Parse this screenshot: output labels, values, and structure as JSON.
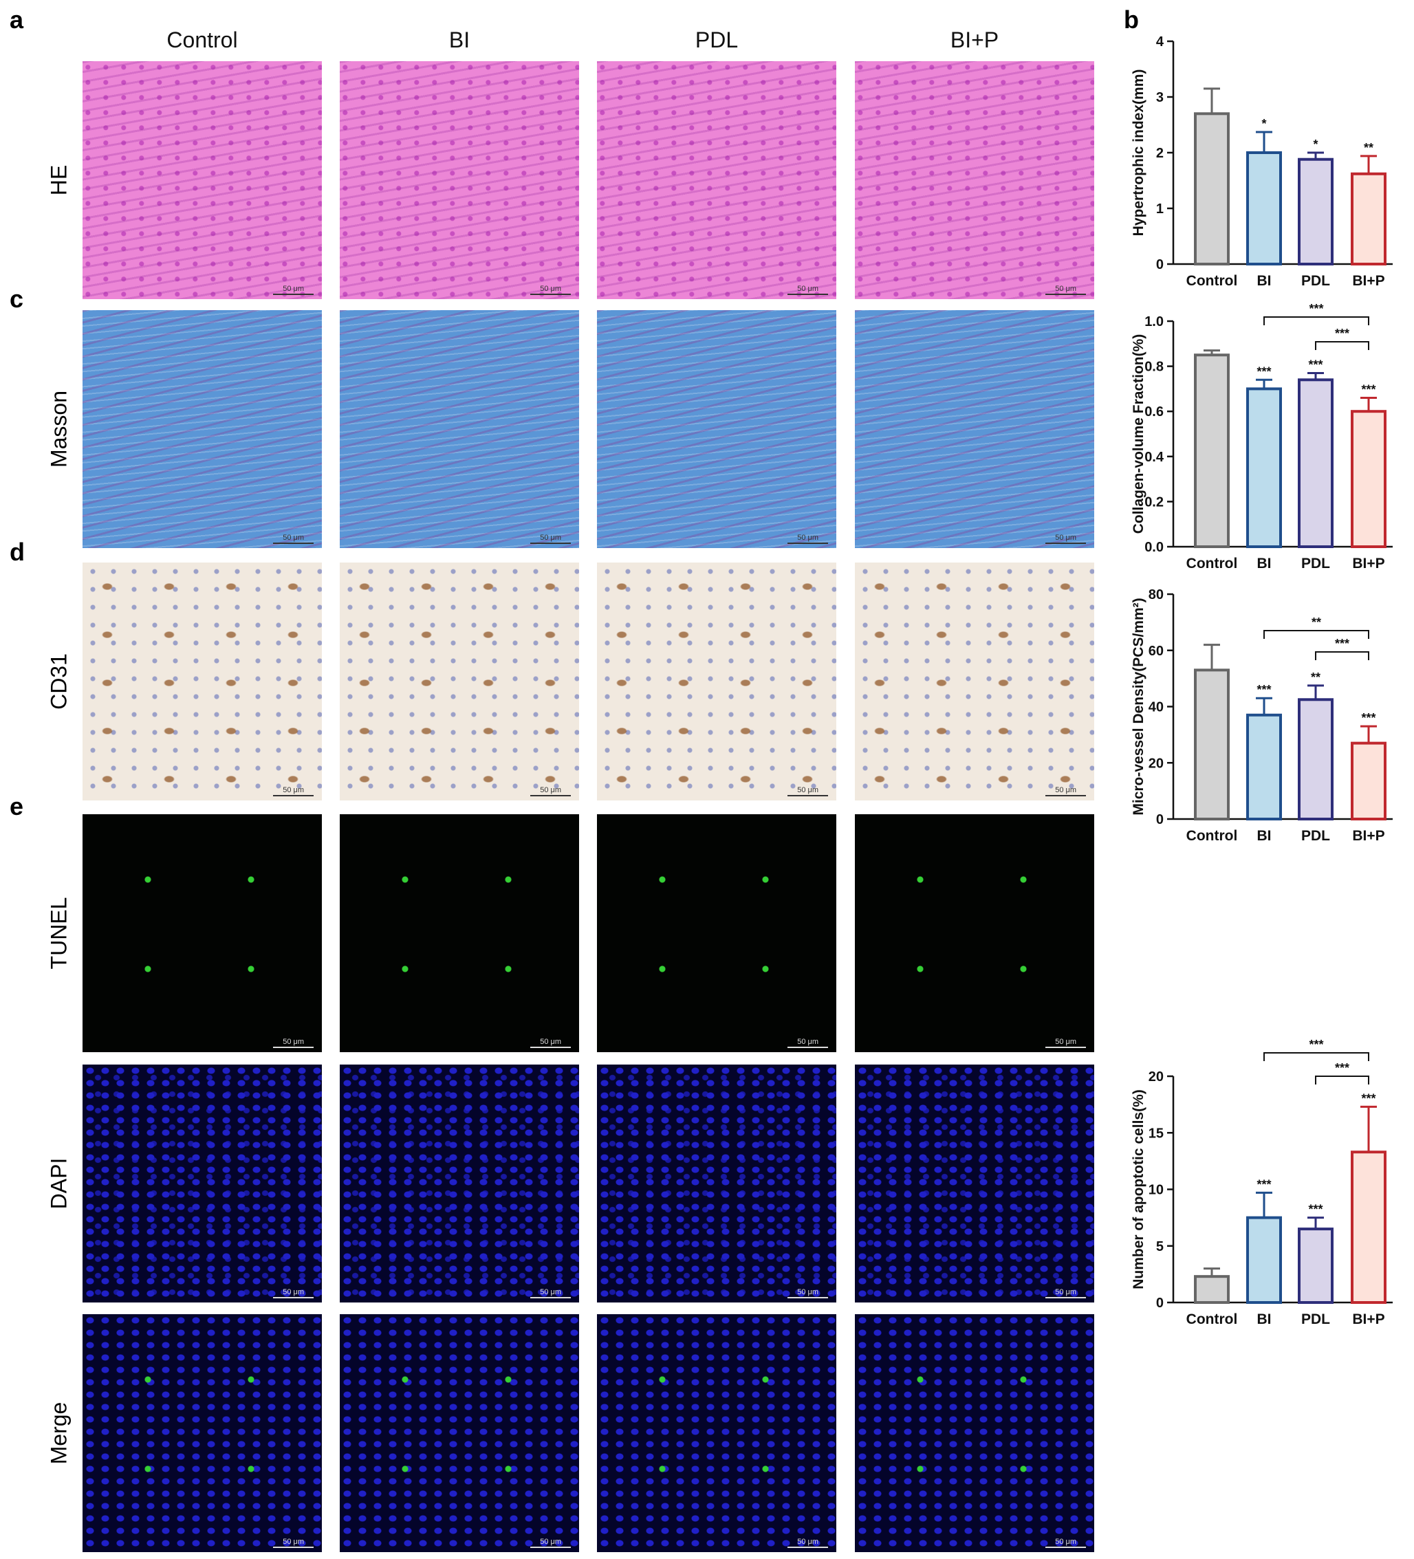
{
  "panel_labels": [
    "a",
    "b",
    "c",
    "d",
    "e"
  ],
  "columns": [
    "Control",
    "BI",
    "PDL",
    "BI+P"
  ],
  "rows": [
    "HE",
    "Masson",
    "CD31",
    "TUNEL",
    "DAPI",
    "Merge"
  ],
  "scale_bar": "50 μm",
  "chart_data": [
    {
      "type": "bar",
      "y_label": "Hypertrophic index(mm)",
      "categories": [
        "Control",
        "BI",
        "PDL",
        "BI+P"
      ],
      "values": [
        2.7,
        2.0,
        1.88,
        1.62
      ],
      "errors": [
        0.45,
        0.37,
        0.12,
        0.32
      ],
      "significance": [
        null,
        "*",
        "*",
        "**"
      ],
      "brackets": [],
      "colors": [
        "#d3d3d3",
        "#bcdcec",
        "#d9d4ea",
        "#fde2da"
      ],
      "edge_colors": [
        "#666666",
        "#1f4e8c",
        "#2e2e7a",
        "#c0282e"
      ],
      "ylim": [
        0,
        4
      ],
      "yticks": [
        0,
        1,
        2,
        3,
        4
      ]
    },
    {
      "type": "bar",
      "y_label": "Collagen-volume Fraction(%)",
      "categories": [
        "Control",
        "BI",
        "PDL",
        "BI+P"
      ],
      "values": [
        0.85,
        0.7,
        0.74,
        0.6
      ],
      "errors": [
        0.02,
        0.04,
        0.03,
        0.06
      ],
      "significance": [
        null,
        "***",
        "***",
        "***"
      ],
      "brackets": [
        {
          "categories": [
            "BI",
            "BI+P"
          ],
          "label": "***"
        },
        {
          "categories": [
            "PDL",
            "BI+P"
          ],
          "label": "***"
        }
      ],
      "colors": [
        "#d3d3d3",
        "#bcdcec",
        "#d9d4ea",
        "#fde2da"
      ],
      "edge_colors": [
        "#666666",
        "#1f4e8c",
        "#2e2e7a",
        "#c0282e"
      ],
      "ylim": [
        0,
        1
      ],
      "yticks": [
        {
          "value": 0,
          "label": "0.0"
        },
        0.2,
        0.4,
        0.6,
        0.8,
        {
          "value": 1,
          "label": "1.0"
        }
      ]
    },
    {
      "type": "bar",
      "y_label": "Micro-vessel Density(PCS/mm²)",
      "categories": [
        "Control",
        "BI",
        "PDL",
        "BI+P"
      ],
      "values": [
        53,
        37,
        42.5,
        27
      ],
      "errors": [
        9,
        6,
        5,
        6
      ],
      "significance": [
        null,
        "***",
        "**",
        "***"
      ],
      "brackets": [
        {
          "categories": [
            "BI",
            "BI+P"
          ],
          "label": "**"
        },
        {
          "categories": [
            "PDL",
            "BI+P"
          ],
          "label": "***"
        }
      ],
      "colors": [
        "#d3d3d3",
        "#bcdcec",
        "#d9d4ea",
        "#fde2da"
      ],
      "edge_colors": [
        "#666666",
        "#1f4e8c",
        "#2e2e7a",
        "#c0282e"
      ],
      "ylim": [
        0,
        80
      ],
      "yticks": [
        0,
        20,
        40,
        60,
        80
      ]
    },
    {
      "type": "bar",
      "y_label": "Number of apoptotic cells(%)",
      "categories": [
        "Control",
        "BI",
        "PDL",
        "BI+P"
      ],
      "values": [
        2.3,
        7.5,
        6.5,
        13.3
      ],
      "errors": [
        0.7,
        2.2,
        1.0,
        4.0
      ],
      "significance": [
        null,
        "***",
        "***",
        "***"
      ],
      "brackets": [
        {
          "categories": [
            "BI",
            "BI+P"
          ],
          "label": "***"
        },
        {
          "categories": [
            "PDL",
            "BI+P"
          ],
          "label": "***"
        }
      ],
      "colors": [
        "#d3d3d3",
        "#bcdcec",
        "#d9d4ea",
        "#fde2da"
      ],
      "edge_colors": [
        "#666666",
        "#1f4e8c",
        "#2e2e7a",
        "#c0282e"
      ],
      "ylim": [
        0,
        20
      ],
      "yticks": [
        0,
        5,
        10,
        15,
        20
      ]
    }
  ]
}
